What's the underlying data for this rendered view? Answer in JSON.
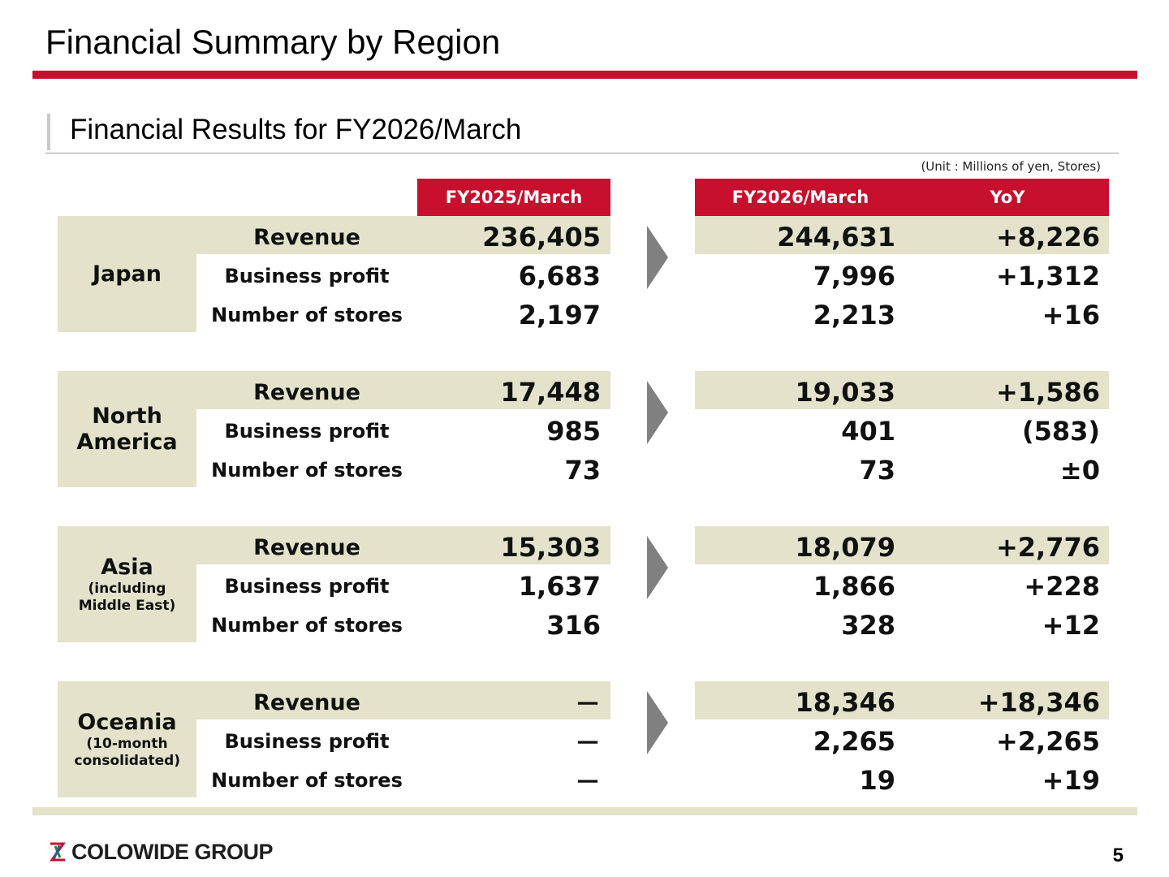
{
  "title": "Financial Summary by Region",
  "subtitle": "Financial Results for FY2026/March",
  "unit_note": "(Unit : Millions of yen, Stores)",
  "headers": {
    "prev": "FY2025/March",
    "cur": "FY2026/March",
    "yoy": "YoY"
  },
  "metric_labels": {
    "revenue": "Revenue",
    "profit": "Business profit",
    "stores": "Number of stores"
  },
  "regions": [
    {
      "name": "Japan",
      "note": "",
      "revenue": {
        "prev": "236,405",
        "cur": "244,631",
        "yoy": "+8,226"
      },
      "profit": {
        "prev": "6,683",
        "cur": "7,996",
        "yoy": "+1,312"
      },
      "stores": {
        "prev": "2,197",
        "cur": "2,213",
        "yoy": "+16"
      }
    },
    {
      "name": "North America",
      "note": "",
      "revenue": {
        "prev": "17,448",
        "cur": "19,033",
        "yoy": "+1,586"
      },
      "profit": {
        "prev": "985",
        "cur": "401",
        "yoy": "(583)"
      },
      "stores": {
        "prev": "73",
        "cur": "73",
        "yoy": "±0"
      }
    },
    {
      "name": "Asia",
      "note": "(including Middle East)",
      "revenue": {
        "prev": "15,303",
        "cur": "18,079",
        "yoy": "+2,776"
      },
      "profit": {
        "prev": "1,637",
        "cur": "1,866",
        "yoy": "+228"
      },
      "stores": {
        "prev": "316",
        "cur": "328",
        "yoy": "+12"
      }
    },
    {
      "name": "Oceania",
      "note": "(10-month consolidated)",
      "revenue": {
        "prev": "－",
        "cur": "18,346",
        "yoy": "+18,346"
      },
      "profit": {
        "prev": "－",
        "cur": "2,265",
        "yoy": "+2,265"
      },
      "stores": {
        "prev": "－",
        "cur": "19",
        "yoy": "+19"
      }
    }
  ],
  "footer": {
    "logo_text": "COLOWIDE GROUP",
    "page_number": "5"
  },
  "colors": {
    "accent_red": "#c8102e",
    "band_beige": "#e4e2cb",
    "arrow_gray": "#808080"
  },
  "icons": {
    "logo": "colowide-logo-icon",
    "arrow": "arrow-right-icon"
  }
}
